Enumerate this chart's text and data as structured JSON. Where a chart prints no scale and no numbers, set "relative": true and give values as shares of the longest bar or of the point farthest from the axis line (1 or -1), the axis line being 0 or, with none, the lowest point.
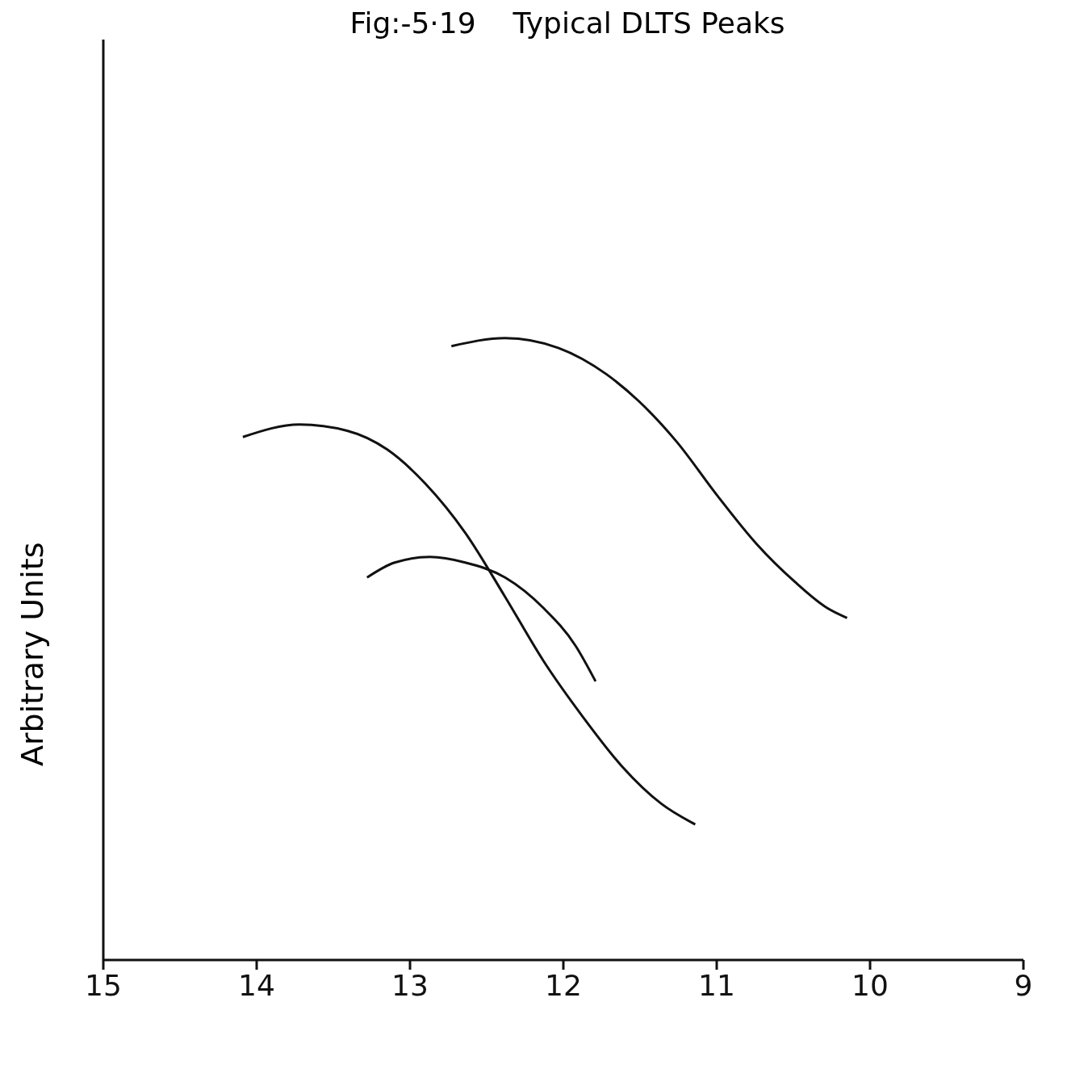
{
  "chart_data": {
    "type": "line",
    "title": "Fig:-5·19    Typical DLTS Peaks",
    "ylabel": "Arbitrary Units",
    "relative": true,
    "xlim": [
      15,
      9
    ],
    "xticks": [
      15,
      14,
      13,
      12,
      11,
      10,
      9
    ],
    "grid": false,
    "legend": false,
    "marker": "none",
    "line_style": "solid",
    "series": [
      {
        "color": "#111111",
        "x": [
          12.73,
          12.38,
          12.03,
          11.72,
          11.51,
          11.26,
          11.0,
          10.74,
          10.49,
          10.28,
          10.15
        ],
        "values": [
          0.987,
          1.0,
          0.984,
          0.942,
          0.899,
          0.833,
          0.748,
          0.669,
          0.608,
          0.566,
          0.55
        ]
      },
      {
        "color": "#111111",
        "x": [
          14.09,
          13.72,
          13.41,
          13.15,
          12.9,
          12.64,
          12.38,
          12.13,
          11.87,
          11.62,
          11.36,
          11.14
        ],
        "values": [
          0.841,
          0.861,
          0.851,
          0.821,
          0.766,
          0.687,
          0.584,
          0.481,
          0.39,
          0.312,
          0.251,
          0.218
        ]
      },
      {
        "color": "#111111",
        "x": [
          13.28,
          13.1,
          12.87,
          12.64,
          12.38,
          12.13,
          11.92,
          11.79
        ],
        "values": [
          0.615,
          0.639,
          0.648,
          0.639,
          0.615,
          0.566,
          0.505,
          0.448
        ]
      }
    ]
  }
}
